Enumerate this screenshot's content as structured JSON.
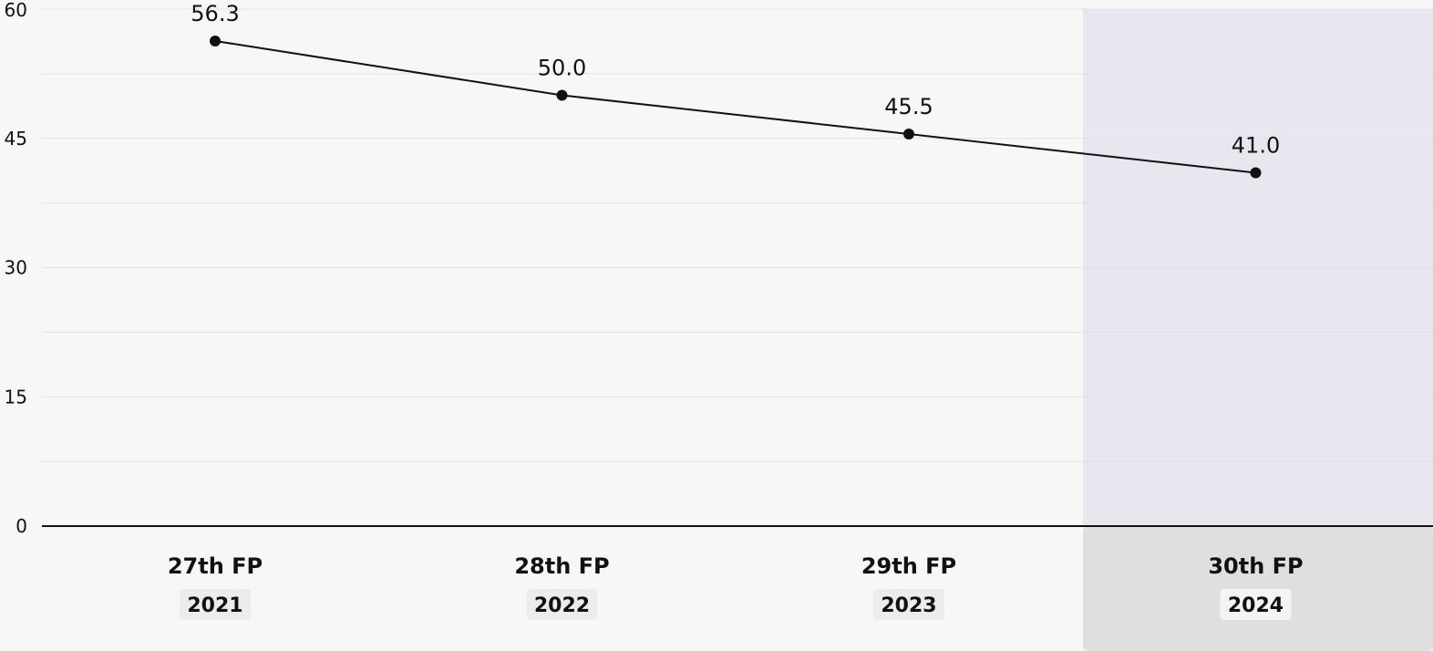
{
  "chart_data": {
    "type": "line",
    "categories": [
      "27th FP",
      "28th FP",
      "29th FP",
      "30th FP"
    ],
    "years": [
      "2021",
      "2022",
      "2023",
      "2024"
    ],
    "values": [
      56.3,
      50.0,
      45.5,
      41.0
    ],
    "data_labels": [
      "56.3",
      "50.0",
      "45.5",
      "41.0"
    ],
    "y_ticks": [
      "0",
      "15",
      "30",
      "45",
      "60"
    ],
    "ylim": [
      0,
      60
    ],
    "grid": true,
    "highlighted_category": "30th FP",
    "colors": {
      "background": "#f8f7f8",
      "highlight_plot": "#e7e7ef",
      "highlight_axis": "#e0dfdf",
      "line": "#111111",
      "grid": "#e3e2e5",
      "year_badge": "#ececec",
      "year_badge_highlight": "#f4f4f4"
    }
  }
}
